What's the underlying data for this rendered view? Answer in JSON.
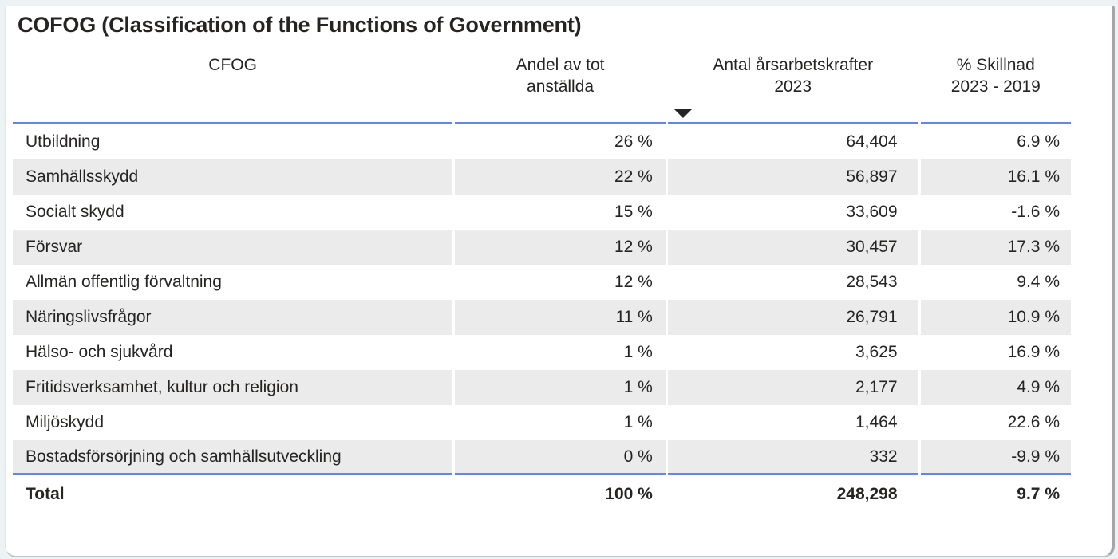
{
  "title": "COFOG (Classification of the Functions of Government)",
  "colors": {
    "accent_line": "#6287e8",
    "text": "#252423",
    "row_bg": "#ffffff",
    "row_alt_bg": "#ebebeb",
    "card_bg": "#ffffff",
    "card_border": "#a6a6a6",
    "page_bg": "#edf3f5"
  },
  "table": {
    "columns": [
      {
        "id": "cfog",
        "line1": "CFOG",
        "line2": "",
        "align": "left",
        "sorted": false
      },
      {
        "id": "andel",
        "line1": "Andel av tot",
        "line2": "anställda",
        "align": "right",
        "sorted": false
      },
      {
        "id": "antal",
        "line1": "Antal årsarbetskrafter",
        "line2": "2023",
        "align": "right",
        "sorted": true,
        "sort_direction": "descending"
      },
      {
        "id": "skillnad",
        "line1": "% Skillnad",
        "line2": "2023 - 2019",
        "align": "right",
        "sorted": false
      }
    ],
    "rows": [
      {
        "cells": [
          "Utbildning",
          "26 %",
          "64,404",
          "6.9 %"
        ]
      },
      {
        "cells": [
          "Samhällsskydd",
          "22 %",
          "56,897",
          "16.1 %"
        ]
      },
      {
        "cells": [
          "Socialt skydd",
          "15 %",
          "33,609",
          "-1.6 %"
        ]
      },
      {
        "cells": [
          "Försvar",
          "12 %",
          "30,457",
          "17.3 %"
        ]
      },
      {
        "cells": [
          "Allmän offentlig förvaltning",
          "12 %",
          "28,543",
          "9.4 %"
        ]
      },
      {
        "cells": [
          "Näringslivsfrågor",
          "11 %",
          "26,791",
          "10.9 %"
        ]
      },
      {
        "cells": [
          "Hälso- och sjukvård",
          "1 %",
          "3,625",
          "16.9 %"
        ]
      },
      {
        "cells": [
          "Fritidsverksamhet, kultur och religion",
          "1 %",
          "2,177",
          "4.9 %"
        ]
      },
      {
        "cells": [
          "Miljöskydd",
          "1 %",
          "1,464",
          "22.6 %"
        ]
      },
      {
        "cells": [
          "Bostadsförsörjning och samhällsutveckling",
          "0 %",
          "332",
          "-9.9 %"
        ]
      }
    ],
    "total": {
      "cells": [
        "Total",
        "100 %",
        "248,298",
        "9.7 %"
      ]
    }
  },
  "chart_data": {
    "type": "table",
    "title": "COFOG (Classification of the Functions of Government)",
    "columns": [
      "CFOG",
      "Andel av tot anställda",
      "Antal årsarbetskrafter 2023",
      "% Skillnad 2023 - 2019"
    ],
    "sort": {
      "column": "Antal årsarbetskrafter 2023",
      "direction": "descending"
    },
    "rows": [
      [
        "Utbildning",
        "26 %",
        64404,
        6.9
      ],
      [
        "Samhällsskydd",
        "22 %",
        56897,
        16.1
      ],
      [
        "Socialt skydd",
        "15 %",
        33609,
        -1.6
      ],
      [
        "Försvar",
        "12 %",
        30457,
        17.3
      ],
      [
        "Allmän offentlig förvaltning",
        "12 %",
        28543,
        9.4
      ],
      [
        "Näringslivsfrågor",
        "11 %",
        26791,
        10.9
      ],
      [
        "Hälso- och sjukvård",
        "1 %",
        3625,
        16.9
      ],
      [
        "Fritidsverksamhet, kultur och religion",
        "1 %",
        2177,
        4.9
      ],
      [
        "Miljöskydd",
        "1 %",
        1464,
        22.6
      ],
      [
        "Bostadsförsörjning och samhällsutveckling",
        "0 %",
        332,
        -9.9
      ]
    ],
    "total_row": [
      "Total",
      "100 %",
      248298,
      9.7
    ]
  }
}
